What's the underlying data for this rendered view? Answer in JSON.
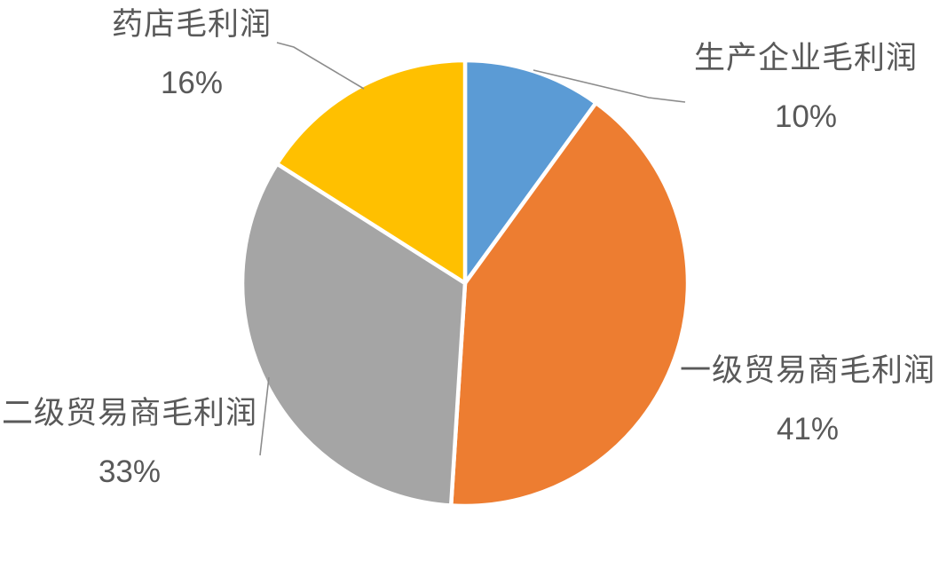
{
  "chart_data": {
    "type": "pie",
    "title": "",
    "legend": "none",
    "start_angle_deg": 0,
    "direction": "clockwise",
    "categories": [
      "生产企业毛利润",
      "一级贸易商毛利润",
      "二级贸易商毛利润",
      "药店毛利润"
    ],
    "values": [
      10,
      41,
      33,
      16
    ],
    "slices": [
      {
        "label": "生产企业毛利润",
        "value": 10,
        "pct_label": "10%",
        "color": "#5B9BD5"
      },
      {
        "label": "一级贸易商毛利润",
        "value": 41,
        "pct_label": "41%",
        "color": "#ED7D31"
      },
      {
        "label": "二级贸易商毛利润",
        "value": 33,
        "pct_label": "33%",
        "color": "#A5A5A5"
      },
      {
        "label": "药店毛利润",
        "value": 16,
        "pct_label": "16%",
        "color": "#FFC000"
      }
    ],
    "colors": {
      "background": "#FFFFFF",
      "label_text": "#595959",
      "leader_line": "#8C8C8C",
      "slice_border": "#FFFFFF"
    }
  }
}
